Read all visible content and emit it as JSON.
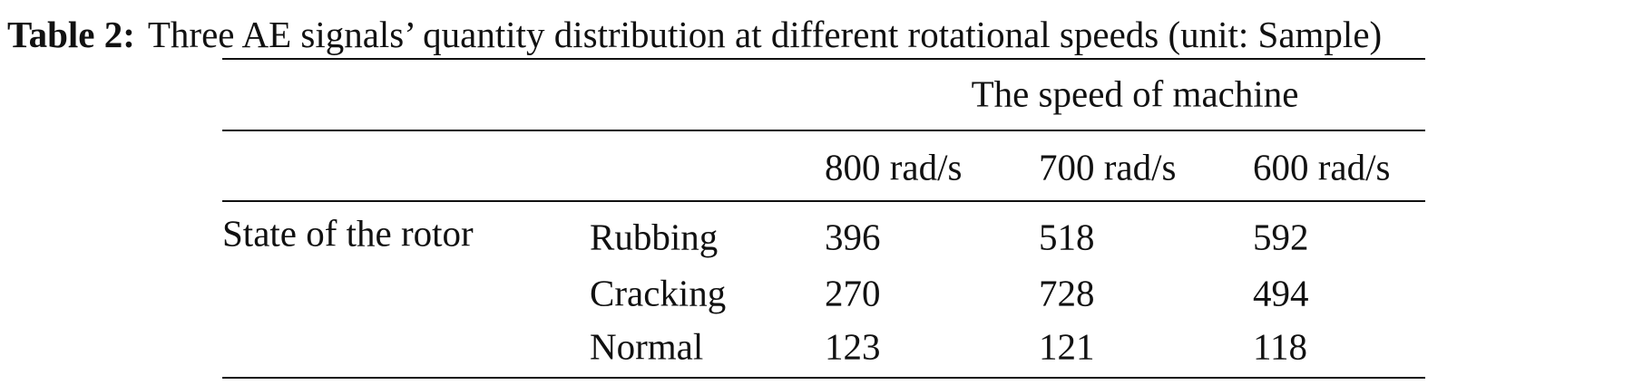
{
  "caption": {
    "label": "Table 2:",
    "text": "Three AE signals’ quantity distribution at different rotational speeds (unit: Sample)"
  },
  "table": {
    "spanning_header": "The speed of machine",
    "columns": [
      "800 rad/s",
      "700 rad/s",
      "600 rad/s"
    ],
    "row_group": "State of the rotor",
    "rows": [
      [
        "Rubbing",
        396,
        518,
        592
      ],
      [
        "Cracking",
        270,
        728,
        494
      ],
      [
        "Normal",
        123,
        121,
        118
      ]
    ]
  }
}
